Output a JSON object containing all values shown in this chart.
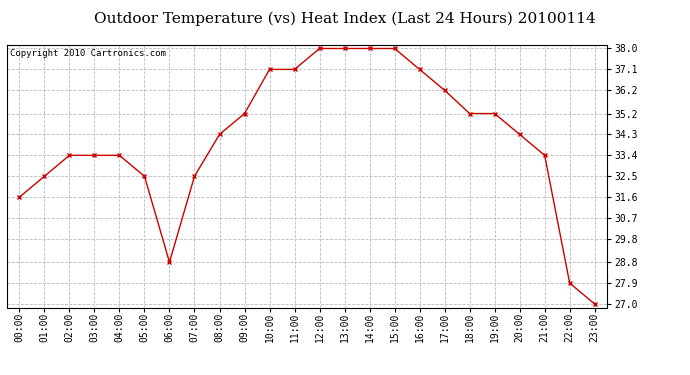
{
  "title": "Outdoor Temperature (vs) Heat Index (Last 24 Hours) 20100114",
  "copyright": "Copyright 2010 Cartronics.com",
  "x_labels": [
    "00:00",
    "01:00",
    "02:00",
    "03:00",
    "04:00",
    "05:00",
    "06:00",
    "07:00",
    "08:00",
    "09:00",
    "10:00",
    "11:00",
    "12:00",
    "13:00",
    "14:00",
    "15:00",
    "16:00",
    "17:00",
    "18:00",
    "19:00",
    "20:00",
    "21:00",
    "22:00",
    "23:00"
  ],
  "y_values": [
    31.6,
    32.5,
    33.4,
    33.4,
    33.4,
    32.5,
    28.8,
    32.5,
    34.3,
    35.2,
    37.1,
    37.1,
    38.0,
    38.0,
    38.0,
    38.0,
    37.1,
    36.2,
    35.2,
    35.2,
    34.3,
    33.4,
    27.9,
    27.0
  ],
  "line_color": "#cc0000",
  "marker": "x",
  "marker_color": "#cc0000",
  "ylim_min": 27.0,
  "ylim_max": 38.0,
  "ytick_values": [
    27.0,
    27.9,
    28.8,
    29.8,
    30.7,
    31.6,
    32.5,
    33.4,
    34.3,
    35.2,
    36.2,
    37.1,
    38.0
  ],
  "grid_color": "#bbbbbb",
  "grid_style": "--",
  "background_color": "#ffffff",
  "title_fontsize": 11,
  "copyright_fontsize": 6.5,
  "tick_fontsize": 7,
  "title_font": "DejaVu Serif",
  "copyright_font": "DejaVu Sans Mono"
}
